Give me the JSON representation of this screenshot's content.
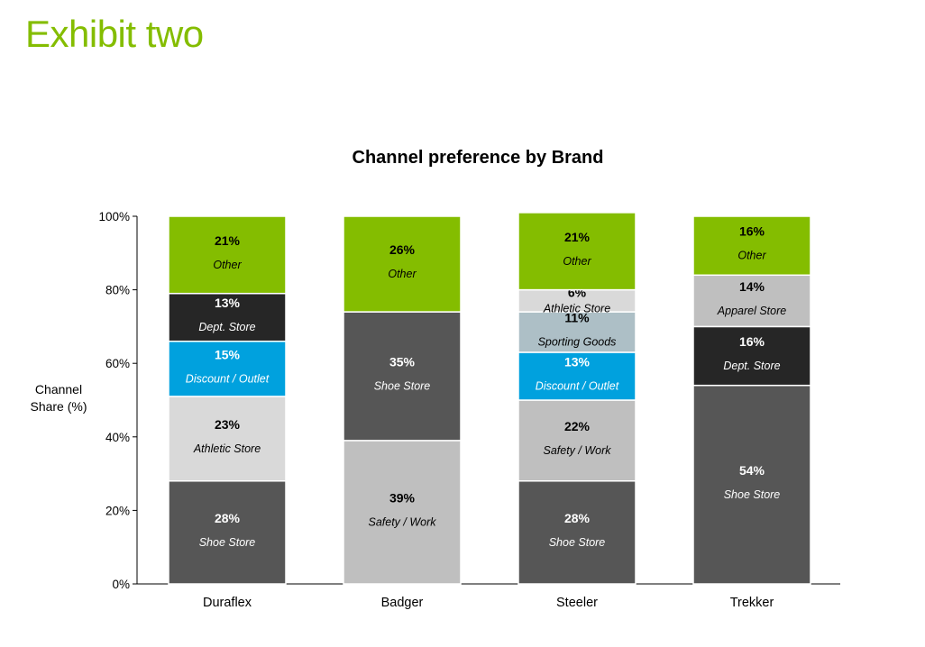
{
  "page": {
    "exhibit_title": "Exhibit two"
  },
  "chart_data": {
    "type": "bar",
    "stacked": true,
    "title": "Channel preference by Brand",
    "ylabel": "Channel\nShare (%)",
    "ylim": [
      0,
      100
    ],
    "yticks": [
      "0%",
      "20%",
      "40%",
      "60%",
      "80%",
      "100%"
    ],
    "categories": [
      "Duraflex",
      "Badger",
      "Steeler",
      "Trekker"
    ],
    "colors": {
      "other": "#84bd00",
      "dept_store": "#262626",
      "discount_outlet": "#00a1de",
      "athletic_store": "#d9d9d9",
      "shoe_store": "#565656",
      "safety_work": "#bfbfbf",
      "sporting_goods": "#adbfc6",
      "apparel_store": "#bfbfbf"
    },
    "bars": [
      {
        "category": "Duraflex",
        "segments": [
          {
            "key": "shoe_store",
            "label": "Shoe Store",
            "value": 28,
            "pct": "28%"
          },
          {
            "key": "athletic_store",
            "label": "Athletic Store",
            "value": 23,
            "pct": "23%"
          },
          {
            "key": "discount_outlet",
            "label": "Discount / Outlet",
            "value": 15,
            "pct": "15%"
          },
          {
            "key": "dept_store",
            "label": "Dept. Store",
            "value": 13,
            "pct": "13%"
          },
          {
            "key": "other",
            "label": "Other",
            "value": 21,
            "pct": "21%"
          }
        ]
      },
      {
        "category": "Badger",
        "segments": [
          {
            "key": "safety_work",
            "label": "Safety / Work",
            "value": 39,
            "pct": "39%"
          },
          {
            "key": "shoe_store",
            "label": "Shoe Store",
            "value": 35,
            "pct": "35%"
          },
          {
            "key": "other",
            "label": "Other",
            "value": 26,
            "pct": "26%"
          }
        ]
      },
      {
        "category": "Steeler",
        "segments": [
          {
            "key": "shoe_store",
            "label": "Shoe Store",
            "value": 28,
            "pct": "28%"
          },
          {
            "key": "safety_work",
            "label": "Safety / Work",
            "value": 22,
            "pct": "22%"
          },
          {
            "key": "discount_outlet",
            "label": "Discount / Outlet",
            "value": 13,
            "pct": "13%"
          },
          {
            "key": "sporting_goods",
            "label": "Sporting Goods",
            "value": 11,
            "pct": "11%"
          },
          {
            "key": "athletic_store",
            "label": "Athletic Store",
            "value": 6,
            "pct": "6%"
          },
          {
            "key": "other",
            "label": "Other",
            "value": 21,
            "pct": "21%"
          }
        ]
      },
      {
        "category": "Trekker",
        "segments": [
          {
            "key": "shoe_store",
            "label": "Shoe Store",
            "value": 54,
            "pct": "54%"
          },
          {
            "key": "dept_store",
            "label": "Dept. Store",
            "value": 16,
            "pct": "16%"
          },
          {
            "key": "apparel_store",
            "label": "Apparel Store",
            "value": 14,
            "pct": "14%"
          },
          {
            "key": "other",
            "label": "Other",
            "value": 16,
            "pct": "16%"
          }
        ]
      }
    ],
    "grid": false,
    "legend": "none (inline segment labels)"
  }
}
